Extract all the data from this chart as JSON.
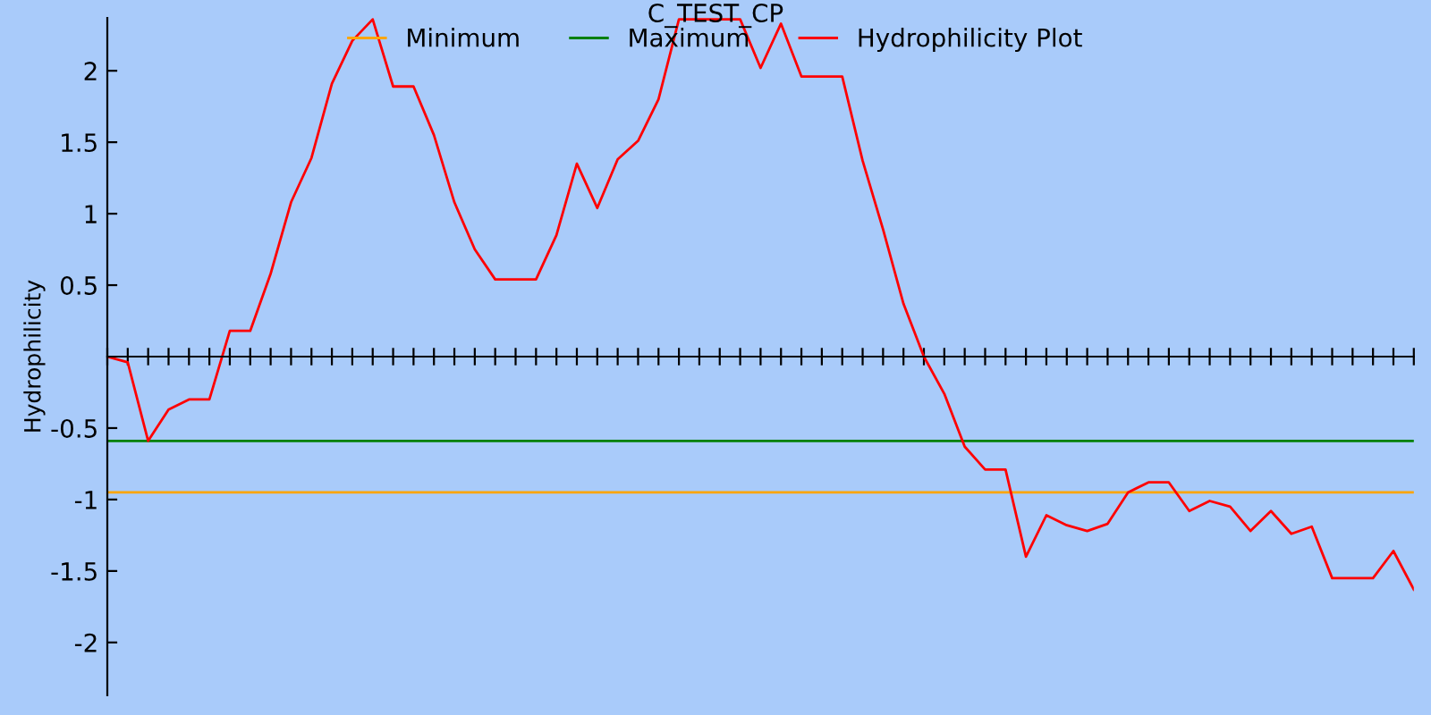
{
  "chart_data": {
    "type": "line",
    "title": "C_TEST_CP",
    "ylabel": "Hydrophilicity",
    "categories": [
      null,
      null,
      null,
      null,
      null,
      null,
      null,
      null,
      null,
      null,
      null,
      null,
      null,
      null,
      null,
      null,
      null,
      null,
      null,
      null,
      null,
      null,
      null,
      null,
      null,
      null,
      null,
      null,
      null,
      null,
      null,
      null,
      null,
      null,
      null,
      null,
      null,
      null,
      null,
      null,
      null,
      null,
      null,
      null,
      null,
      null,
      null,
      null,
      null,
      null,
      null,
      null,
      null,
      null,
      null,
      null,
      null,
      null,
      null,
      null,
      null,
      null,
      null,
      null,
      null
    ],
    "series": [
      {
        "name": "Minimum",
        "color": "#ffa500",
        "values": [
          -0.95,
          -0.95,
          -0.95,
          -0.95,
          -0.95,
          -0.95,
          -0.95,
          -0.95,
          -0.95,
          -0.95,
          -0.95,
          -0.95,
          -0.95,
          -0.95,
          -0.95,
          -0.95,
          -0.95,
          -0.95,
          -0.95,
          -0.95,
          -0.95,
          -0.95,
          -0.95,
          -0.95,
          -0.95,
          -0.95,
          -0.95,
          -0.95,
          -0.95,
          -0.95,
          -0.95,
          -0.95,
          -0.95,
          -0.95,
          -0.95,
          -0.95,
          -0.95,
          -0.95,
          -0.95,
          -0.95,
          -0.95,
          -0.95,
          -0.95,
          -0.95,
          -0.95,
          -0.95,
          -0.95,
          -0.95,
          -0.95,
          -0.95,
          -0.95,
          -0.95,
          -0.95,
          -0.95,
          -0.95,
          -0.95,
          -0.95,
          -0.95,
          -0.95,
          -0.95,
          -0.95,
          -0.95,
          -0.95,
          -0.95,
          -0.95
        ]
      },
      {
        "name": "Maximum",
        "color": "#008000",
        "values": [
          -0.59,
          -0.59,
          -0.59,
          -0.59,
          -0.59,
          -0.59,
          -0.59,
          -0.59,
          -0.59,
          -0.59,
          -0.59,
          -0.59,
          -0.59,
          -0.59,
          -0.59,
          -0.59,
          -0.59,
          -0.59,
          -0.59,
          -0.59,
          -0.59,
          -0.59,
          -0.59,
          -0.59,
          -0.59,
          -0.59,
          -0.59,
          -0.59,
          -0.59,
          -0.59,
          -0.59,
          -0.59,
          -0.59,
          -0.59,
          -0.59,
          -0.59,
          -0.59,
          -0.59,
          -0.59,
          -0.59,
          -0.59,
          -0.59,
          -0.59,
          -0.59,
          -0.59,
          -0.59,
          -0.59,
          -0.59,
          -0.59,
          -0.59,
          -0.59,
          -0.59,
          -0.59,
          -0.59,
          -0.59,
          -0.59,
          -0.59,
          -0.59,
          -0.59,
          -0.59,
          -0.59,
          -0.59,
          -0.59,
          -0.59,
          -0.59
        ]
      },
      {
        "name": "Hydrophilicity Plot",
        "color": "#ff0000",
        "values": [
          0,
          -0.04,
          -0.59,
          -0.37,
          -0.3,
          -0.3,
          0.18,
          0.18,
          0.58,
          1.08,
          1.39,
          1.91,
          2.21,
          2.36,
          1.89,
          1.89,
          1.55,
          1.08,
          0.75,
          0.54,
          0.54,
          0.54,
          0.85,
          1.35,
          1.04,
          1.38,
          1.51,
          1.8,
          2.36,
          2.36,
          2.36,
          2.36,
          2.02,
          2.33,
          1.96,
          1.96,
          1.96,
          1.37,
          0.89,
          0.37,
          0,
          -0.26,
          -0.63,
          -0.79,
          -0.79,
          -1.4,
          -1.11,
          -1.18,
          -1.22,
          -1.17,
          -0.95,
          -0.88,
          -0.88,
          -1.08,
          -1.01,
          -1.05,
          -1.22,
          -1.08,
          -1.24,
          -1.19,
          -1.55,
          -1.55,
          -1.55,
          -1.36,
          -1.63
        ]
      }
    ],
    "ylim": [
      -2.37,
      2.37
    ],
    "yticks": [
      -2,
      -1.5,
      -1,
      -0.5,
      0.5,
      1,
      1.5,
      2
    ],
    "grid": false,
    "legend": "top",
    "marker": "none",
    "line_style": "solid"
  }
}
